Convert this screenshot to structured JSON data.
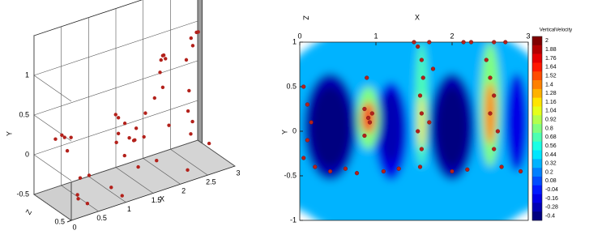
{
  "chart_data": [
    {
      "type": "scatter3d",
      "xlabel": "X",
      "ylabel": "Y",
      "zlabel": "Z",
      "xlim": [
        0,
        3
      ],
      "ylim": [
        -0.5,
        1.5
      ],
      "zlim": [
        0,
        0.5
      ],
      "xticks": [
        0,
        0.5,
        1,
        1.5,
        2,
        2.5,
        3
      ],
      "yticks": [
        -0.5,
        0,
        0.5,
        1
      ],
      "zticks": [
        0.5
      ],
      "color": "#b3211b",
      "x": [
        0.1,
        0.15,
        0.2,
        0.12,
        0.2,
        0.3,
        0.25,
        0.4,
        0.5,
        0.6,
        0.95,
        1.0,
        1.05,
        1.0,
        1.1,
        1.2,
        1.3,
        1.4,
        1.35,
        1.25,
        1.5,
        1.6,
        1.7,
        1.8,
        1.7,
        1.85,
        1.9,
        1.95,
        2.0,
        1.9,
        1.95,
        2.4,
        2.5,
        2.6,
        2.5,
        2.45,
        2.5,
        2.55,
        2.6,
        2.7,
        0.8,
        1.0,
        2.2,
        2.8,
        2.2
      ],
      "y": [
        0.42,
        0.38,
        0.4,
        0.3,
        0.2,
        -0.1,
        -0.3,
        -0.45,
        -0.5,
        -0.2,
        0.55,
        0.5,
        0.45,
        0.3,
        0.1,
        0.2,
        0.15,
        0.2,
        0.1,
        -0.1,
        -0.3,
        0.1,
        0.3,
        0.5,
        -0.2,
        1.0,
        1.05,
        1.0,
        0.95,
        0.8,
        0.6,
        1.15,
        1.2,
        1.15,
        1.0,
        0.8,
        0.4,
        0.1,
        -0.2,
        -0.1,
        -0.3,
        -0.45,
        -0.4,
        -0.3,
        0.0
      ],
      "z": [
        0.3,
        0.3,
        0.35,
        0.2,
        0.3,
        0.4,
        0.4,
        0.3,
        0.35,
        0.3,
        0.4,
        0.4,
        0.45,
        0.4,
        0.3,
        0.4,
        0.4,
        0.45,
        0.35,
        0.3,
        0.3,
        0.2,
        0.25,
        0.3,
        0.4,
        0.35,
        0.35,
        0.3,
        0.3,
        0.3,
        0.3,
        0.35,
        0.35,
        0.3,
        0.3,
        0.25,
        0.25,
        0.2,
        0.2,
        0.15,
        0.45,
        0.45,
        0.45,
        0.3,
        0.2
      ]
    },
    {
      "type": "contour",
      "title": "X",
      "zlabel": "Z",
      "ylabel": "Y",
      "xlim": [
        0,
        3
      ],
      "ylim": [
        -1,
        1
      ],
      "xticks": [
        0,
        1,
        2,
        3
      ],
      "yticks": [
        -1,
        -0.5,
        0,
        0.5,
        1
      ],
      "colorbar": {
        "title": "VerticalVelocity",
        "levels": [
          2,
          1.88,
          1.76,
          1.64,
          1.52,
          1.4,
          1.28,
          1.16,
          1.04,
          0.92,
          0.8,
          0.68,
          0.56,
          0.44,
          0.32,
          0.2,
          0.08,
          -0.04,
          -0.16,
          -0.28,
          -0.4
        ]
      },
      "field": [
        {
          "x": 1.5,
          "y": 0,
          "rx": 2,
          "ry": 1.3,
          "value": 0.32
        },
        {
          "x": 0.4,
          "y": 0.05,
          "rx": 0.35,
          "ry": 0.6,
          "value": -0.28
        },
        {
          "x": 0.4,
          "y": 0.05,
          "rx": 0.25,
          "ry": 0.45,
          "value": -0.4
        },
        {
          "x": 1.2,
          "y": 0,
          "rx": 0.22,
          "ry": 0.55,
          "value": -0.16
        },
        {
          "x": 1.2,
          "y": 0.05,
          "rx": 0.15,
          "ry": 0.4,
          "value": -0.28
        },
        {
          "x": 2,
          "y": 0.05,
          "rx": 0.3,
          "ry": 0.6,
          "value": -0.28
        },
        {
          "x": 2,
          "y": 0.05,
          "rx": 0.2,
          "ry": 0.45,
          "value": -0.4
        },
        {
          "x": 2.85,
          "y": 0.1,
          "rx": 0.15,
          "ry": 0.55,
          "value": -0.16
        },
        {
          "x": 0.9,
          "y": 0.15,
          "rx": 0.15,
          "ry": 0.35,
          "value": 0.8
        },
        {
          "x": 0.9,
          "y": 0.15,
          "rx": 0.08,
          "ry": 0.18,
          "value": 1.64
        },
        {
          "x": 1.6,
          "y": 0.3,
          "rx": 0.08,
          "ry": 0.7,
          "value": 0.68
        },
        {
          "x": 1.6,
          "y": 0.1,
          "rx": 0.04,
          "ry": 0.3,
          "value": 1.16
        },
        {
          "x": 2.5,
          "y": 0.3,
          "rx": 0.13,
          "ry": 0.7,
          "value": 0.8
        },
        {
          "x": 2.5,
          "y": 0.2,
          "rx": 0.07,
          "ry": 0.35,
          "value": 1.4
        },
        {
          "x": 1.5,
          "y": -0.8,
          "rx": 1.6,
          "ry": 0.25,
          "value": 0.32
        }
      ],
      "points": {
        "color": "#b3211b",
        "x": [
          1.55,
          1.6,
          1.62,
          1.58,
          1.6,
          1.55,
          1.6,
          1.58,
          1.5,
          1.7,
          2.15,
          2.25,
          2.55,
          2.7,
          2.45,
          2.5,
          2.55,
          2.5,
          2.6,
          2.55,
          2.65,
          0.85,
          0.9,
          0.95,
          0.88,
          0.92,
          0.85,
          0.05,
          0.1,
          0.15,
          0.1,
          0.05,
          0.2,
          0.4,
          0.6,
          0.75,
          1.1,
          1.3,
          2.0,
          2.2,
          2.9,
          1.75,
          1.7
        ],
        "y": [
          0.95,
          0.8,
          0.6,
          0.4,
          0.2,
          0,
          -0.2,
          -0.4,
          1.0,
          1.0,
          1.0,
          1.0,
          1.0,
          1.0,
          0.8,
          0.6,
          0.4,
          0.2,
          0,
          -0.2,
          -0.4,
          0.25,
          0.15,
          0.2,
          0.6,
          0.1,
          -0.05,
          0.5,
          0.3,
          0.1,
          -0.1,
          -0.3,
          -0.4,
          -0.45,
          -0.42,
          -0.47,
          -0.45,
          -0.42,
          -0.45,
          -0.43,
          -0.45,
          0.7,
          0.1
        ]
      }
    }
  ]
}
